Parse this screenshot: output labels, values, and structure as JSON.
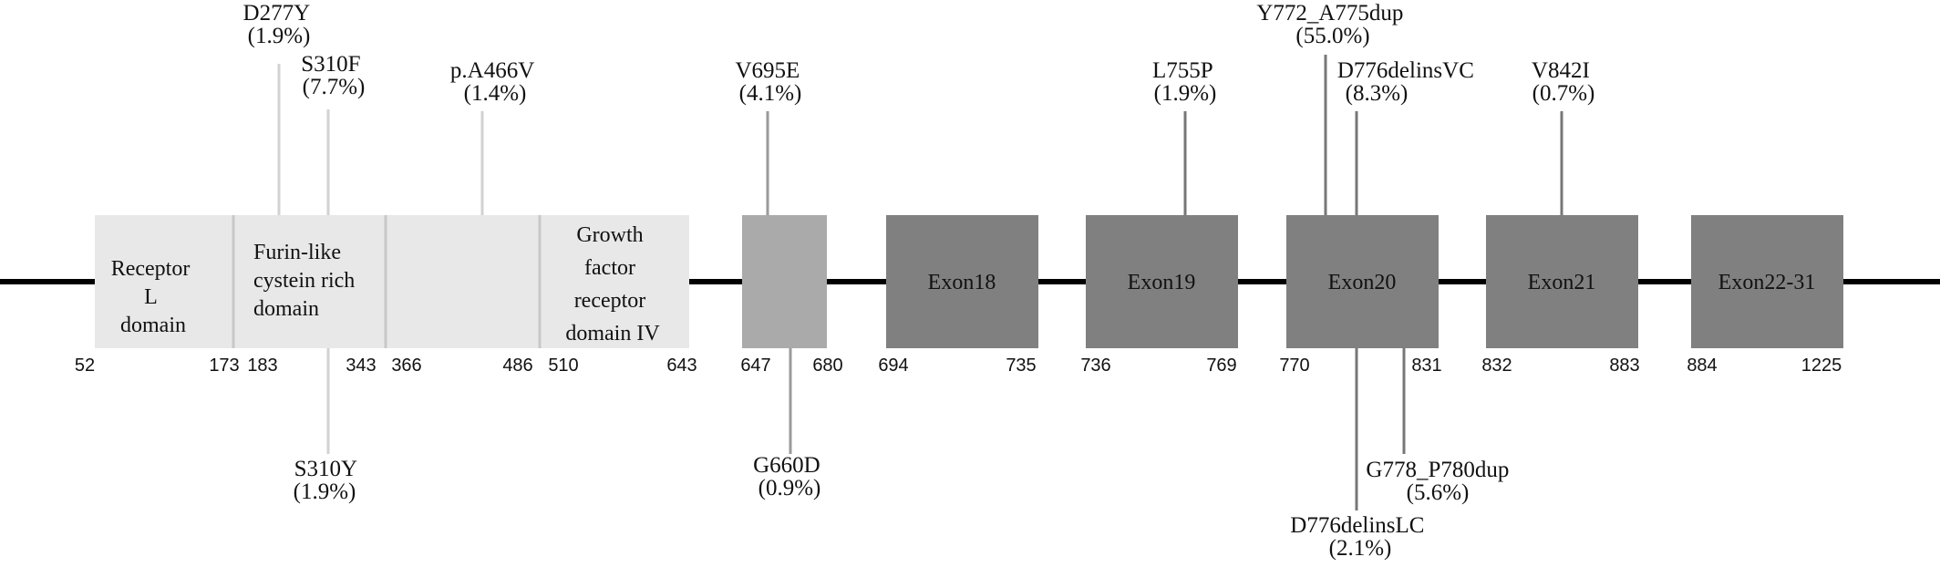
{
  "colors": {
    "backbone": "#000000",
    "light_domain": "#e8e8e8",
    "light_divider": "#c8c8c8",
    "mid_domain": "#aaaaaa",
    "exon": "#808080",
    "stem_light": "#d2d2d2",
    "stem_mid": "#9a9a9a",
    "stem_dark": "#777777",
    "text": "#111111"
  },
  "domains": [
    {
      "id": "receptor-l",
      "label_lines": [
        "Receptor",
        "L",
        "domain"
      ],
      "start": "52",
      "end": "173"
    },
    {
      "id": "furin-like",
      "label_lines": [
        "Furin-like",
        "cystein rich",
        "domain"
      ],
      "start": "183",
      "end": "343"
    },
    {
      "id": "segment-366",
      "label_lines": [],
      "start": "366",
      "end": "486"
    },
    {
      "id": "growth-factor-iv",
      "label_lines": [
        "Growth",
        "factor",
        "receptor",
        "domain IV"
      ],
      "start": "510",
      "end": "643"
    },
    {
      "id": "segment-647",
      "label_lines": [],
      "start": "647",
      "end": "680"
    },
    {
      "id": "exon18",
      "label_lines": [
        "Exon18"
      ],
      "start": "694",
      "end": "735"
    },
    {
      "id": "exon19",
      "label_lines": [
        "Exon19"
      ],
      "start": "736",
      "end": "769"
    },
    {
      "id": "exon20",
      "label_lines": [
        "Exon20"
      ],
      "start": "770",
      "end": "831"
    },
    {
      "id": "exon21",
      "label_lines": [
        "Exon21"
      ],
      "start": "832",
      "end": "883"
    },
    {
      "id": "exon22-31",
      "label_lines": [
        "Exon22-31"
      ],
      "start": "884",
      "end": "1225"
    }
  ],
  "mutations_above": [
    {
      "id": "d277y",
      "name": "D277Y",
      "pct": "(1.9%)"
    },
    {
      "id": "s310f",
      "name": "S310F",
      "pct": "(7.7%)"
    },
    {
      "id": "a466v",
      "name": "p.A466V",
      "pct": "(1.4%)"
    },
    {
      "id": "v695e",
      "name": "V695E",
      "pct": "(4.1%)"
    },
    {
      "id": "l755p",
      "name": "L755P",
      "pct": "(1.9%)"
    },
    {
      "id": "y772",
      "name": "Y772_A775dup",
      "pct": "(55.0%)"
    },
    {
      "id": "d776vc",
      "name": "D776delinsVC",
      "pct": "(8.3%)"
    },
    {
      "id": "v842i",
      "name": "V842I",
      "pct": "(0.7%)"
    }
  ],
  "mutations_below": [
    {
      "id": "s310y",
      "name": "S310Y",
      "pct": "(1.9%)"
    },
    {
      "id": "g660d",
      "name": "G660D",
      "pct": "(0.9%)"
    },
    {
      "id": "g778",
      "name": "G778_P780dup",
      "pct": "(5.6%)"
    },
    {
      "id": "d776lc",
      "name": "D776delinsLC",
      "pct": "(2.1%)"
    }
  ]
}
